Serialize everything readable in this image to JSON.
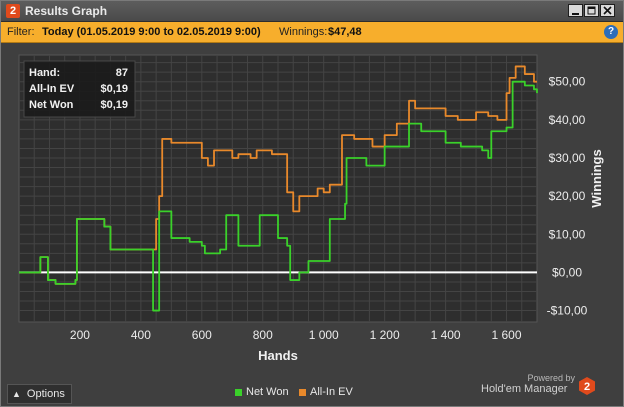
{
  "window": {
    "title": "Results Graph",
    "app_icon": "2",
    "minimize_icon": "minimize-icon",
    "maximize_icon": "maximize-icon",
    "close_icon": "close-icon"
  },
  "filter": {
    "label": "Filter:",
    "value": "Today (01.05.2019 9:00 to 02.05.2019 9:00)",
    "winnings_label": "Winnings:",
    "winnings_value": "$47,48",
    "help_icon": "?"
  },
  "tooltip": {
    "rows": [
      {
        "label": "Hand:",
        "value": "87"
      },
      {
        "label": "All-In EV",
        "value": "$0,19"
      },
      {
        "label": "Net Won",
        "value": "$0,19"
      }
    ]
  },
  "colors": {
    "net_won": "#3ad12a",
    "all_in_ev": "#e8892b",
    "zero_line": "#ffffff",
    "accent": "#f7ae2c"
  },
  "chart_data": {
    "type": "line",
    "xlabel": "Hands",
    "ylabel": "Winnings",
    "xlim": [
      0,
      1700
    ],
    "ylim": [
      -13,
      57
    ],
    "x_ticks": [
      200,
      400,
      600,
      800,
      1000,
      1200,
      1400,
      1600
    ],
    "x_tick_labels": [
      "200",
      "400",
      "600",
      "800",
      "1 000",
      "1 200",
      "1 400",
      "1 600"
    ],
    "y_ticks": [
      -10,
      0,
      10,
      20,
      30,
      40,
      50
    ],
    "y_tick_labels": [
      "-$10,00",
      "$0,00",
      "$10,00",
      "$20,00",
      "$30,00",
      "$40,00",
      "$50,00"
    ],
    "grid": true,
    "legend": "bottom-center",
    "series": [
      {
        "name": "Net Won",
        "points": [
          [
            0,
            0
          ],
          [
            60,
            0
          ],
          [
            70,
            4
          ],
          [
            90,
            4
          ],
          [
            95,
            -2
          ],
          [
            120,
            -3
          ],
          [
            160,
            -3
          ],
          [
            185,
            -2
          ],
          [
            190,
            14
          ],
          [
            240,
            14
          ],
          [
            280,
            12
          ],
          [
            300,
            6
          ],
          [
            410,
            6
          ],
          [
            440,
            -10
          ],
          [
            455,
            -10
          ],
          [
            460,
            16
          ],
          [
            500,
            9
          ],
          [
            560,
            8
          ],
          [
            600,
            7
          ],
          [
            610,
            5
          ],
          [
            660,
            6
          ],
          [
            680,
            15
          ],
          [
            700,
            15
          ],
          [
            720,
            7
          ],
          [
            780,
            7
          ],
          [
            790,
            15
          ],
          [
            830,
            15
          ],
          [
            850,
            9
          ],
          [
            880,
            7
          ],
          [
            890,
            -2
          ],
          [
            910,
            -2
          ],
          [
            920,
            0
          ],
          [
            940,
            0
          ],
          [
            950,
            3
          ],
          [
            1010,
            3
          ],
          [
            1020,
            14
          ],
          [
            1070,
            18
          ],
          [
            1075,
            30
          ],
          [
            1100,
            30
          ],
          [
            1140,
            28
          ],
          [
            1190,
            28
          ],
          [
            1200,
            33
          ],
          [
            1260,
            33
          ],
          [
            1280,
            39
          ],
          [
            1320,
            37
          ],
          [
            1400,
            34
          ],
          [
            1450,
            33
          ],
          [
            1520,
            32
          ],
          [
            1540,
            30
          ],
          [
            1550,
            37
          ],
          [
            1600,
            38
          ],
          [
            1620,
            50
          ],
          [
            1640,
            50
          ],
          [
            1660,
            49
          ],
          [
            1690,
            48
          ],
          [
            1700,
            47
          ]
        ]
      },
      {
        "name": "All-In EV",
        "points": [
          [
            0,
            0
          ],
          [
            60,
            0
          ],
          [
            70,
            4
          ],
          [
            90,
            4
          ],
          [
            95,
            -2
          ],
          [
            120,
            -3
          ],
          [
            160,
            -3
          ],
          [
            185,
            -2
          ],
          [
            190,
            14
          ],
          [
            240,
            14
          ],
          [
            280,
            12
          ],
          [
            300,
            6
          ],
          [
            420,
            6
          ],
          [
            450,
            14
          ],
          [
            460,
            20
          ],
          [
            470,
            35
          ],
          [
            500,
            34
          ],
          [
            600,
            30
          ],
          [
            620,
            28
          ],
          [
            640,
            32
          ],
          [
            700,
            30
          ],
          [
            720,
            31
          ],
          [
            760,
            30
          ],
          [
            780,
            32
          ],
          [
            830,
            31
          ],
          [
            860,
            31
          ],
          [
            880,
            21
          ],
          [
            900,
            16
          ],
          [
            920,
            20
          ],
          [
            980,
            22
          ],
          [
            1000,
            21
          ],
          [
            1010,
            21
          ],
          [
            1020,
            23
          ],
          [
            1060,
            36
          ],
          [
            1100,
            35
          ],
          [
            1160,
            33
          ],
          [
            1200,
            36
          ],
          [
            1240,
            39
          ],
          [
            1280,
            45
          ],
          [
            1300,
            43
          ],
          [
            1400,
            41
          ],
          [
            1440,
            40
          ],
          [
            1500,
            42
          ],
          [
            1540,
            41
          ],
          [
            1570,
            40
          ],
          [
            1600,
            47
          ],
          [
            1610,
            51
          ],
          [
            1630,
            54
          ],
          [
            1660,
            52
          ],
          [
            1690,
            50
          ],
          [
            1700,
            50
          ]
        ]
      }
    ]
  },
  "bottom": {
    "options_label": "Options",
    "legend": [
      {
        "name": "Net Won",
        "color": "#3ad12a"
      },
      {
        "name": "All-In EV",
        "color": "#e8892b"
      }
    ],
    "powered_by": "Powered by",
    "brand": "Hold'em Manager",
    "brand_logo": "2"
  }
}
